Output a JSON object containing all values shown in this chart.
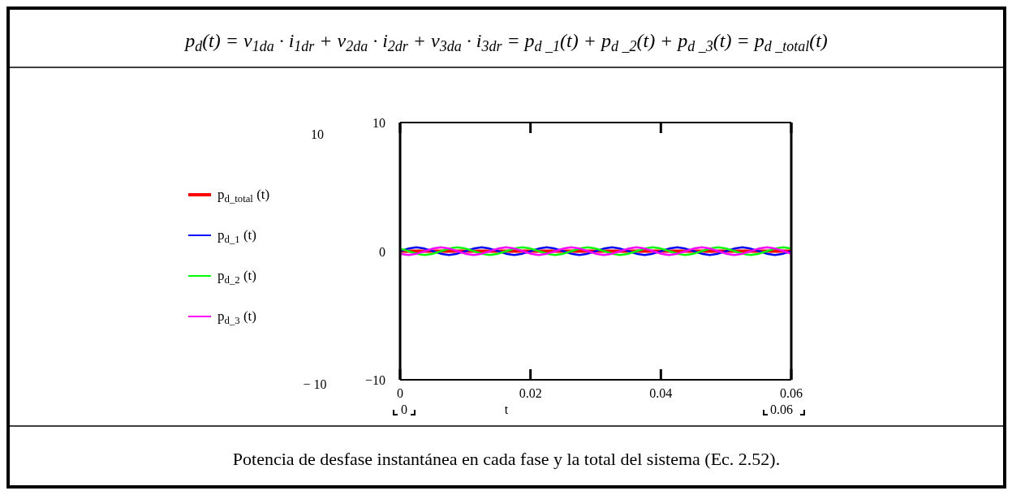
{
  "chart_data": {
    "type": "line",
    "title": "p$_{d}$(t) = v$_{1da}$ · i$_{1dr}$ + v$_{2da}$ · i$_{2dr}$ + v$_{3da}$ · i$_{3dr}$ = p$_{d _1}$(t) + p$_{d _2}$(t) + p$_{d _3}$(t) = p$_{d _total}$(t)",
    "xlabel": "t",
    "annotations": [
      "10",
      "− 10",
      "0",
      "0.06",
      "Potencia de desfase instantánea en cada fase y la total del sistema (Ec. 2.52)."
    ],
    "xlim": [
      0,
      0.06
    ],
    "ylim": [
      -10,
      10
    ],
    "xticks": [
      0,
      0.02,
      0.04,
      0.06
    ],
    "yticks": [
      {
        "value": -10,
        "label": "−10"
      },
      0,
      10
    ],
    "grid": false,
    "legend": "left",
    "line_style": "solid",
    "marker": "none",
    "series": [
      {
        "name": "p$_{d_total}$ (t)",
        "color": "#ff0000",
        "x": [
          0,
          0.06
        ],
        "values": [
          0,
          0
        ]
      },
      {
        "name": "p$_{d_1}$ (t)",
        "color": "#0000ff",
        "x": [
          0,
          0.00125,
          0.0025,
          0.00375,
          0.005,
          0.00625,
          0.0075,
          0.00875,
          0.01,
          0.01125,
          0.0125,
          0.01375,
          0.015,
          0.01625,
          0.0175,
          0.01875,
          0.02,
          0.02125,
          0.0225,
          0.02375,
          0.025,
          0.02625,
          0.0275,
          0.02875,
          0.03,
          0.03125,
          0.0325,
          0.03375,
          0.035,
          0.03625,
          0.0375,
          0.03875,
          0.04,
          0.04125,
          0.0425,
          0.04375,
          0.045,
          0.04625,
          0.0475,
          0.04875,
          0.05,
          0.05125,
          0.0525,
          0.05375,
          0.055,
          0.05625,
          0.0575,
          0.05875,
          0.06
        ],
        "values": [
          0,
          0.2,
          0.3,
          0.2,
          0,
          -0.2,
          -0.3,
          -0.2,
          0,
          0.2,
          0.3,
          0.2,
          0,
          -0.2,
          -0.3,
          -0.2,
          0,
          0.2,
          0.3,
          0.2,
          0,
          -0.2,
          -0.3,
          -0.2,
          0,
          0.2,
          0.3,
          0.2,
          0,
          -0.2,
          -0.3,
          -0.2,
          0,
          0.2,
          0.3,
          0.2,
          0,
          -0.2,
          -0.3,
          -0.2,
          0,
          0.2,
          0.3,
          0.2,
          0,
          -0.2,
          -0.3,
          -0.2,
          0
        ]
      },
      {
        "name": "p$_{d_2}$ (t)",
        "color": "#00ff00",
        "x": [
          0,
          0.00125,
          0.0025,
          0.00375,
          0.005,
          0.00625,
          0.0075,
          0.00875,
          0.01,
          0.01125,
          0.0125,
          0.01375,
          0.015,
          0.01625,
          0.0175,
          0.01875,
          0.02,
          0.02125,
          0.0225,
          0.02375,
          0.025,
          0.02625,
          0.0275,
          0.02875,
          0.03,
          0.03125,
          0.0325,
          0.03375,
          0.035,
          0.03625,
          0.0375,
          0.03875,
          0.04,
          0.04125,
          0.0425,
          0.04375,
          0.045,
          0.04625,
          0.0475,
          0.04875,
          0.05,
          0.05125,
          0.0525,
          0.05375,
          0.055,
          0.05625,
          0.0575,
          0.05875,
          0.06
        ],
        "values": [
          0.2,
          0,
          -0.2,
          -0.3,
          -0.2,
          0,
          0.2,
          0.3,
          0.2,
          0,
          -0.2,
          -0.3,
          -0.2,
          0,
          0.2,
          0.3,
          0.2,
          0,
          -0.2,
          -0.3,
          -0.2,
          0,
          0.2,
          0.3,
          0.2,
          0,
          -0.2,
          -0.3,
          -0.2,
          0,
          0.2,
          0.3,
          0.2,
          0,
          -0.2,
          -0.3,
          -0.2,
          0,
          0.2,
          0.3,
          0.2,
          0,
          -0.2,
          -0.3,
          -0.2,
          0,
          0.2,
          0.3,
          0.2
        ]
      },
      {
        "name": "p$_{d_3}$ (t)",
        "color": "#ff00ff",
        "x": [
          0,
          0.00125,
          0.0025,
          0.00375,
          0.005,
          0.00625,
          0.0075,
          0.00875,
          0.01,
          0.01125,
          0.0125,
          0.01375,
          0.015,
          0.01625,
          0.0175,
          0.01875,
          0.02,
          0.02125,
          0.0225,
          0.02375,
          0.025,
          0.02625,
          0.0275,
          0.02875,
          0.03,
          0.03125,
          0.0325,
          0.03375,
          0.035,
          0.03625,
          0.0375,
          0.03875,
          0.04,
          0.04125,
          0.0425,
          0.04375,
          0.045,
          0.04625,
          0.0475,
          0.04875,
          0.05,
          0.05125,
          0.0525,
          0.05375,
          0.055,
          0.05625,
          0.0575,
          0.05875,
          0.06
        ],
        "values": [
          -0.2,
          -0.3,
          -0.2,
          0,
          0.2,
          0.3,
          0.2,
          0,
          -0.2,
          -0.3,
          -0.2,
          0,
          0.2,
          0.3,
          0.2,
          0,
          -0.2,
          -0.3,
          -0.2,
          0,
          0.2,
          0.3,
          0.2,
          0,
          -0.2,
          -0.3,
          -0.2,
          0,
          0.2,
          0.3,
          0.2,
          0,
          -0.2,
          -0.3,
          -0.2,
          0,
          0.2,
          0.3,
          0.2,
          0,
          -0.2,
          -0.3,
          -0.2,
          0,
          0.2,
          0.3,
          0.2,
          0,
          -0.2
        ]
      }
    ]
  }
}
